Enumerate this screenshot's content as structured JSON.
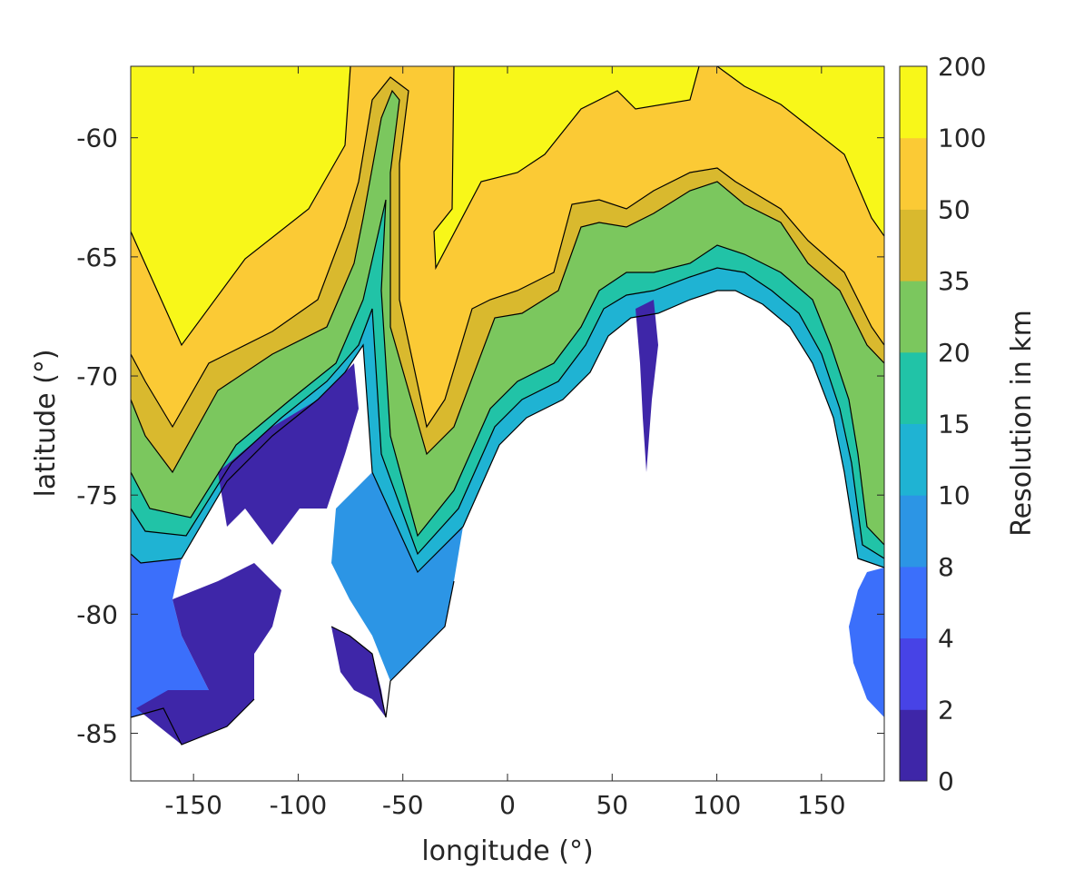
{
  "chart_data": {
    "type": "heatmap",
    "title": "",
    "xlabel": "longitude (°)",
    "ylabel": "latitude (°)",
    "xlim": [
      -180,
      180
    ],
    "ylim": [
      -87,
      -57
    ],
    "xticks": [
      -150,
      -100,
      -50,
      0,
      50,
      100,
      150
    ],
    "xtick_labels": [
      "-150",
      "-100",
      "-50",
      "0",
      "50",
      "100",
      "150"
    ],
    "yticks": [
      -60,
      -65,
      -70,
      -75,
      -80,
      -85
    ],
    "ytick_labels": [
      "-60",
      "-65",
      "-70",
      "-75",
      "-80",
      "-85"
    ],
    "grid": false,
    "colorbar": {
      "label": "Resolution in km",
      "levels": [
        0,
        2,
        4,
        8,
        10,
        15,
        20,
        35,
        50,
        100,
        200
      ],
      "level_labels": [
        "0",
        "2",
        "4",
        "8",
        "10",
        "15",
        "20",
        "35",
        "50",
        "100",
        "200"
      ],
      "colors": [
        "#3e26a8",
        "#4743e6",
        "#3b6ffb",
        "#2c95e5",
        "#1fb3d3",
        "#21c3a7",
        "#7bc75e",
        "#d9b92e",
        "#fbca35",
        "#fbc833",
        "#f8f719"
      ]
    },
    "contour_boundaries": [
      {
        "level": 100,
        "lat": [
          [
            -180,
            -64.0
          ],
          [
            -160,
            -68.5
          ],
          [
            -150,
            -67.5
          ],
          [
            -120,
            -65.2
          ],
          [
            -100,
            -64.2
          ],
          [
            -85,
            -62.5
          ],
          [
            -78,
            -60.0
          ],
          [
            -77,
            -57.0
          ],
          [
            -30,
            -57.0
          ],
          [
            -31,
            -61.0
          ],
          [
            -35,
            -62.5
          ],
          [
            -33,
            -65.0
          ],
          [
            -10,
            -63.0
          ],
          [
            0,
            -62.8
          ],
          [
            20,
            -62.0
          ],
          [
            40,
            -60.0
          ],
          [
            60,
            -58.5
          ],
          [
            80,
            -59.0
          ],
          [
            95,
            -57.0
          ],
          [
            110,
            -57.0
          ],
          [
            130,
            -59.0
          ],
          [
            150,
            -60.5
          ],
          [
            170,
            -62.5
          ],
          [
            180,
            -64.0
          ]
        ]
      },
      {
        "level": 50,
        "lat": [
          [
            -180,
            -69.0
          ],
          [
            -170,
            -73.5
          ],
          [
            -155,
            -73.5
          ],
          [
            -130,
            -70.0
          ],
          [
            -100,
            -68.0
          ],
          [
            -80,
            -64.0
          ],
          [
            -65,
            -58.5
          ],
          [
            -55,
            -58.0
          ],
          [
            -50,
            -62.0
          ],
          [
            -45,
            -70.5
          ],
          [
            -35,
            -71.5
          ],
          [
            -20,
            -68.0
          ],
          [
            0,
            -67.5
          ],
          [
            20,
            -67.0
          ],
          [
            30,
            -64.5
          ],
          [
            40,
            -66.5
          ],
          [
            55,
            -65.0
          ],
          [
            75,
            -65.5
          ],
          [
            95,
            -63.0
          ],
          [
            105,
            -64.0
          ],
          [
            125,
            -63.5
          ],
          [
            145,
            -65.0
          ],
          [
            165,
            -67.5
          ],
          [
            180,
            -68.5
          ]
        ]
      },
      {
        "level": 20,
        "lat": [
          [
            -180,
            -75.0
          ],
          [
            -170,
            -77.5
          ],
          [
            -155,
            -77.0
          ],
          [
            -130,
            -73.0
          ],
          [
            -100,
            -71.0
          ],
          [
            -75,
            -69.0
          ],
          [
            -60,
            -61.0
          ],
          [
            -52,
            -61.0
          ],
          [
            -50,
            -65.0
          ],
          [
            -45,
            -74.0
          ],
          [
            -33,
            -76.0
          ],
          [
            -20,
            -72.0
          ],
          [
            0,
            -71.5
          ],
          [
            20,
            -70.5
          ],
          [
            30,
            -67.5
          ],
          [
            40,
            -69.5
          ],
          [
            55,
            -67.0
          ],
          [
            75,
            -67.5
          ],
          [
            95,
            -65.5
          ],
          [
            105,
            -66.5
          ],
          [
            125,
            -65.5
          ],
          [
            145,
            -67.0
          ],
          [
            165,
            -71.0
          ],
          [
            180,
            -73.0
          ]
        ]
      }
    ]
  }
}
